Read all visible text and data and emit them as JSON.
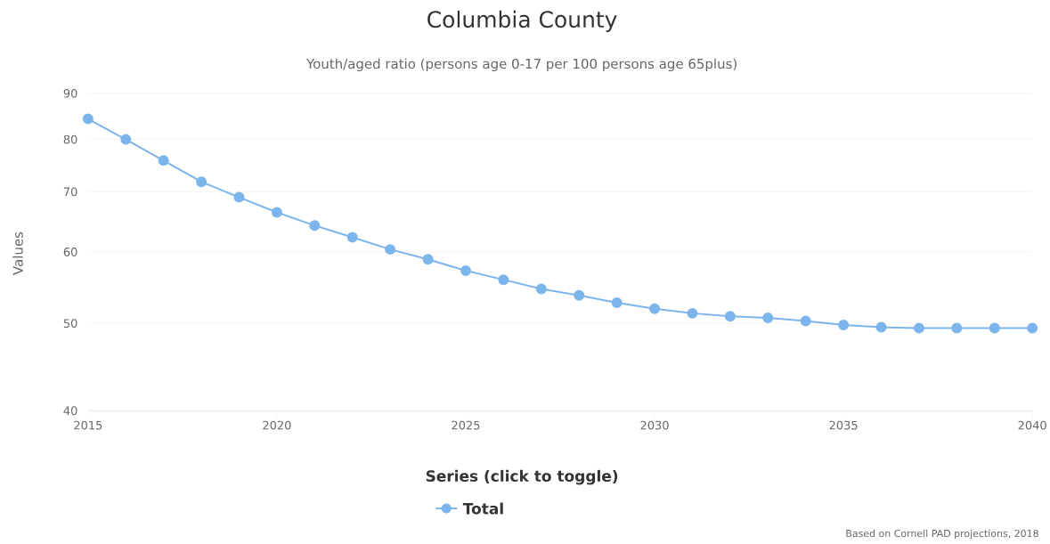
{
  "chart_data": {
    "type": "line",
    "title": "Columbia County",
    "subtitle": "Youth/aged ratio (persons age 0-17 per 100 persons age 65plus)",
    "ylabel": "Values",
    "legend_title": "Series (click to toggle)",
    "annotations": [
      "Based on Cornell PAD projections, 2018"
    ],
    "x": [
      2015,
      2016,
      2017,
      2018,
      2019,
      2020,
      2021,
      2022,
      2023,
      2024,
      2025,
      2026,
      2027,
      2028,
      2029,
      2030,
      2031,
      2032,
      2033,
      2034,
      2035,
      2036,
      2037,
      2038,
      2039,
      2040
    ],
    "series": [
      {
        "name": "Total",
        "color": "#7cb5ec",
        "values": [
          84.3,
          80.0,
          75.8,
          71.8,
          69.0,
          66.4,
          64.2,
          62.3,
          60.4,
          58.9,
          57.2,
          55.9,
          54.6,
          53.7,
          52.7,
          51.9,
          51.3,
          50.9,
          50.7,
          50.3,
          49.8,
          49.5,
          49.4,
          49.4,
          49.4,
          49.4
        ]
      }
    ],
    "xlim": [
      2015,
      2040
    ],
    "ylim": [
      40,
      90
    ],
    "xticks": [
      2015,
      2020,
      2025,
      2030,
      2035,
      2040
    ],
    "yticks": [
      40,
      50,
      60,
      70,
      80,
      90
    ],
    "log": "y",
    "grid": "y",
    "legend": "bottom",
    "marker": "circle"
  }
}
